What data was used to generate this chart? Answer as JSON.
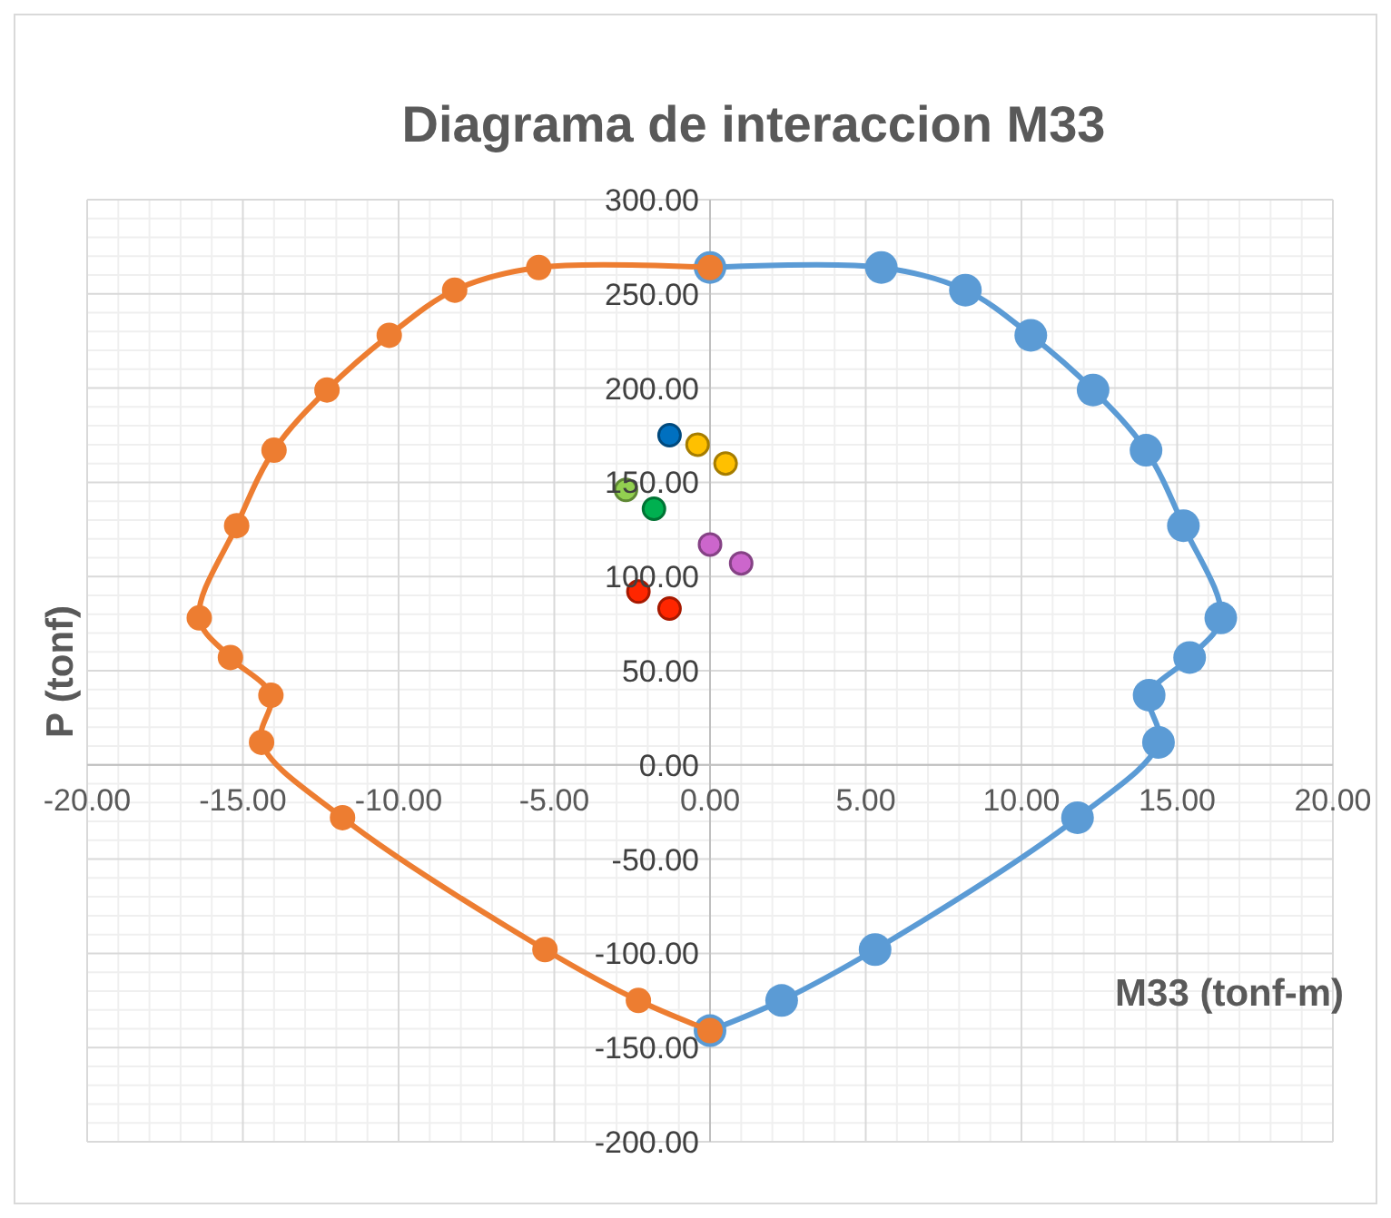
{
  "chart_data": {
    "type": "line",
    "title": "Diagrama de interaccion M33",
    "xlabel": "M33 (tonf-m)",
    "ylabel": "P (tonf)",
    "xlim": [
      -20,
      20
    ],
    "ylim": [
      -200,
      300
    ],
    "xticks": [
      {
        "value": -20,
        "label": "-20.00"
      },
      {
        "value": -15,
        "label": "-15.00"
      },
      {
        "value": -10,
        "label": "-10.00"
      },
      {
        "value": -5,
        "label": "-5.00"
      },
      {
        "value": 0,
        "label": "0.00"
      },
      {
        "value": 5,
        "label": "5.00"
      },
      {
        "value": 10,
        "label": "10.00"
      },
      {
        "value": 15,
        "label": "15.00"
      },
      {
        "value": 20,
        "label": "20.00"
      }
    ],
    "yticks": [
      {
        "value": -200,
        "label": "-200.00"
      },
      {
        "value": -150,
        "label": "-150.00"
      },
      {
        "value": -100,
        "label": "-100.00"
      },
      {
        "value": -50,
        "label": "-50.00"
      },
      {
        "value": 0,
        "label": "0.00"
      },
      {
        "value": 50,
        "label": "50.00"
      },
      {
        "value": 100,
        "label": "100.00"
      },
      {
        "value": 150,
        "label": "150.00"
      },
      {
        "value": 200,
        "label": "200.00"
      },
      {
        "value": 250,
        "label": "250.00"
      },
      {
        "value": 300,
        "label": "300.00"
      }
    ],
    "grid": true,
    "marker": "circle",
    "line_style": "solid",
    "series": [
      {
        "color": "#5b9bd5",
        "x": [
          0,
          5.5,
          8.2,
          10.3,
          12.3,
          14.0,
          15.2,
          16.4,
          15.4,
          14.1,
          14.4,
          11.8,
          5.3,
          2.3,
          0
        ],
        "values": [
          264,
          264,
          252,
          228,
          199,
          167,
          127,
          78,
          57,
          37,
          12,
          -28,
          -98,
          -125,
          -141
        ]
      },
      {
        "color": "#ed7d31",
        "x": [
          0,
          -5.5,
          -8.2,
          -10.3,
          -12.3,
          -14.0,
          -15.2,
          -16.4,
          -15.4,
          -14.1,
          -14.4,
          -11.8,
          -5.3,
          -2.3,
          0
        ],
        "values": [
          264,
          264,
          252,
          228,
          199,
          167,
          127,
          78,
          57,
          37,
          12,
          -28,
          -98,
          -125,
          -141
        ]
      },
      {
        "type": "scatter",
        "color": "#0070c0",
        "x": [
          -1.3
        ],
        "values": [
          175
        ]
      },
      {
        "type": "scatter",
        "color": "#ffc000",
        "x": [
          -0.4
        ],
        "values": [
          170
        ]
      },
      {
        "type": "scatter",
        "color": "#ffc000",
        "x": [
          0.5
        ],
        "values": [
          160
        ]
      },
      {
        "type": "scatter",
        "color": "#92d050",
        "x": [
          -2.7
        ],
        "values": [
          146
        ]
      },
      {
        "type": "scatter",
        "color": "#00b050",
        "x": [
          -1.8
        ],
        "values": [
          136
        ]
      },
      {
        "type": "scatter",
        "color": "#cc66cc",
        "x": [
          0
        ],
        "values": [
          117
        ]
      },
      {
        "type": "scatter",
        "color": "#cc66cc",
        "x": [
          1.0
        ],
        "values": [
          107
        ]
      },
      {
        "type": "scatter",
        "color": "#ff2600",
        "x": [
          -2.3
        ],
        "values": [
          92
        ]
      },
      {
        "type": "scatter",
        "color": "#ff2600",
        "x": [
          -1.3
        ],
        "values": [
          83
        ]
      }
    ]
  }
}
